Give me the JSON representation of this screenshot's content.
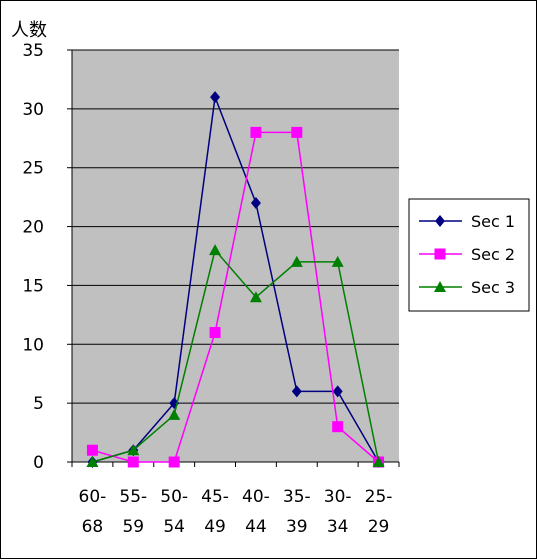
{
  "chart_data": {
    "type": "line",
    "title": "",
    "xlabel": "",
    "ylabel": "人数",
    "ylim": [
      0,
      35
    ],
    "yticks": [
      0,
      5,
      10,
      15,
      20,
      25,
      30,
      35
    ],
    "categories": [
      [
        "60-",
        "68"
      ],
      [
        "55-",
        "59"
      ],
      [
        "50-",
        "54"
      ],
      [
        "45-",
        "49"
      ],
      [
        "40-",
        "44"
      ],
      [
        "35-",
        "39"
      ],
      [
        "30-",
        "34"
      ],
      [
        "25-",
        "29"
      ]
    ],
    "grid": true,
    "legend_position": "right",
    "plot_background": "#c0c0c0",
    "series": [
      {
        "name": "Sec 1",
        "values": [
          0,
          1,
          5,
          31,
          22,
          6,
          6,
          0
        ],
        "color": "#000080",
        "marker": "diamond"
      },
      {
        "name": "Sec 2",
        "values": [
          1,
          0,
          0,
          11,
          28,
          28,
          3,
          0
        ],
        "color": "#ff00ff",
        "marker": "square"
      },
      {
        "name": "Sec 3",
        "values": [
          0,
          1,
          4,
          18,
          14,
          17,
          17,
          0
        ],
        "color": "#008000",
        "marker": "triangle"
      }
    ]
  }
}
